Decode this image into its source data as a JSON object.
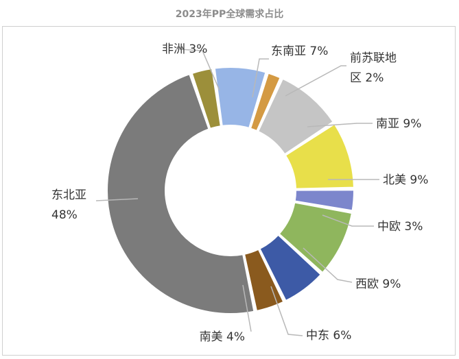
{
  "chart_data": {
    "type": "pie",
    "title": "2023年PP全球需求占比",
    "donut": true,
    "slices": [
      {
        "label": "东南亚",
        "value": 7,
        "color": "#97b5e6"
      },
      {
        "label": "前苏联地区",
        "label_lines": [
          "前苏联地",
          "区 2%"
        ],
        "value": 2,
        "color": "#d49a43"
      },
      {
        "label": "南亚",
        "value": 9,
        "color": "#c5c5c5"
      },
      {
        "label": "北美",
        "value": 9,
        "color": "#e8df4a"
      },
      {
        "label": "中欧",
        "value": 3,
        "color": "#7c86cc"
      },
      {
        "label": "西欧",
        "value": 9,
        "color": "#8fb65d"
      },
      {
        "label": "中东",
        "value": 6,
        "color": "#3d5aa6"
      },
      {
        "label": "南美",
        "value": 4,
        "color": "#8a5a1e"
      },
      {
        "label": "东北亚",
        "value": 48,
        "color": "#7b7b7b"
      },
      {
        "label": "非洲",
        "value": 3,
        "color": "#9c8f3a"
      }
    ],
    "data_labels": {
      "东南亚": "东南亚 7%",
      "南亚": "南亚 9%",
      "北美": "北美 9%",
      "中欧": "中欧 3%",
      "西欧": "西欧 9%",
      "中东": "中东 6%",
      "南美": "南美 4%",
      "非洲": "非洲 3%",
      "东北亚_line1": "东北亚",
      "东北亚_line2": "48%"
    }
  }
}
